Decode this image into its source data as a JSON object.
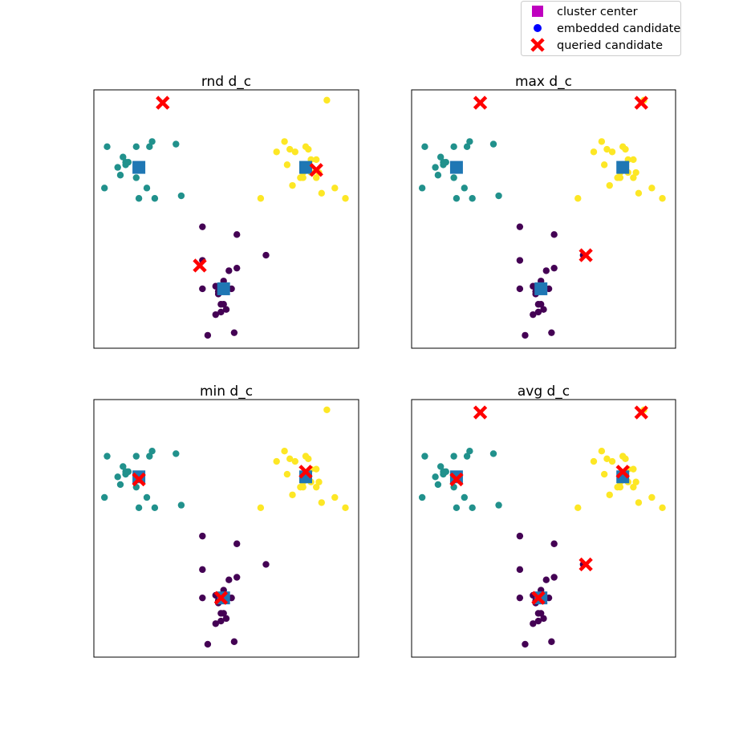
{
  "colors": {
    "cluster_center": "#1f77b4",
    "legend_center": "#bf00bf",
    "embedded": "#0000ff",
    "queried": "#ff0000",
    "class_a": "#440154",
    "class_b": "#21918c",
    "class_c": "#fde725"
  },
  "legend": {
    "placement": "top-right",
    "entries": [
      {
        "label": "cluster center",
        "marker": "square",
        "color": "#bf00bf"
      },
      {
        "label": "embedded candidate",
        "marker": "circle",
        "color": "#0000ff"
      },
      {
        "label": "queried candidate",
        "marker": "x",
        "color": "#ff0000"
      }
    ]
  },
  "chart_data": [
    {
      "type": "scatter",
      "title": "rnd d_c",
      "xlim": [
        0,
        10
      ],
      "ylim": [
        0,
        10
      ],
      "grid": false,
      "centers": [
        [
          1.7,
          7.0
        ],
        [
          8.0,
          7.0
        ],
        [
          4.9,
          2.3
        ]
      ],
      "queried": [
        [
          2.6,
          9.5
        ],
        [
          8.4,
          6.9
        ],
        [
          4.0,
          3.2
        ]
      ]
    },
    {
      "type": "scatter",
      "title": "max d_c",
      "xlim": [
        0,
        10
      ],
      "ylim": [
        0,
        10
      ],
      "grid": false,
      "centers": [
        [
          1.7,
          7.0
        ],
        [
          8.0,
          7.0
        ],
        [
          4.9,
          2.3
        ]
      ],
      "queried": [
        [
          2.6,
          9.5
        ],
        [
          8.7,
          9.5
        ],
        [
          6.6,
          3.6
        ]
      ]
    },
    {
      "type": "scatter",
      "title": "min d_c",
      "xlim": [
        0,
        10
      ],
      "ylim": [
        0,
        10
      ],
      "grid": false,
      "centers": [
        [
          1.7,
          7.0
        ],
        [
          8.0,
          7.0
        ],
        [
          4.9,
          2.3
        ]
      ],
      "queried": [
        [
          1.7,
          6.9
        ],
        [
          8.0,
          7.2
        ],
        [
          4.8,
          2.3
        ]
      ]
    },
    {
      "type": "scatter",
      "title": "avg d_c",
      "xlim": [
        0,
        10
      ],
      "ylim": [
        0,
        10
      ],
      "grid": false,
      "centers": [
        [
          1.7,
          7.0
        ],
        [
          8.0,
          7.0
        ],
        [
          4.9,
          2.3
        ]
      ],
      "queried": [
        [
          2.6,
          9.5
        ],
        [
          8.7,
          9.5
        ],
        [
          1.7,
          6.9
        ],
        [
          8.0,
          7.2
        ],
        [
          6.6,
          3.6
        ],
        [
          4.8,
          2.3
        ]
      ]
    }
  ],
  "points": {
    "class_b": [
      [
        0.5,
        7.8
      ],
      [
        1.1,
        7.4
      ],
      [
        1.6,
        7.8
      ],
      [
        2.1,
        7.8
      ],
      [
        2.2,
        8.0
      ],
      [
        3.1,
        7.9
      ],
      [
        1.2,
        7.2
      ],
      [
        1.3,
        7.2
      ],
      [
        1.2,
        7.1
      ],
      [
        1.7,
        7.1
      ],
      [
        1.0,
        6.7
      ],
      [
        1.6,
        6.6
      ],
      [
        1.8,
        6.9
      ],
      [
        0.9,
        7.0
      ],
      [
        2.0,
        6.2
      ],
      [
        0.4,
        6.2
      ],
      [
        1.7,
        5.8
      ],
      [
        2.3,
        5.8
      ],
      [
        3.3,
        5.9
      ]
    ],
    "class_c": [
      [
        8.8,
        9.6
      ],
      [
        6.9,
        7.6
      ],
      [
        7.2,
        8.0
      ],
      [
        7.4,
        7.7
      ],
      [
        8.0,
        7.8
      ],
      [
        8.1,
        7.7
      ],
      [
        8.2,
        7.3
      ],
      [
        8.4,
        7.3
      ],
      [
        7.6,
        7.6
      ],
      [
        7.3,
        7.1
      ],
      [
        8.1,
        7.1
      ],
      [
        7.9,
        6.8
      ],
      [
        8.2,
        6.8
      ],
      [
        8.5,
        6.8
      ],
      [
        8.4,
        6.6
      ],
      [
        7.8,
        6.6
      ],
      [
        7.9,
        6.6
      ],
      [
        7.5,
        6.3
      ],
      [
        8.6,
        6.0
      ],
      [
        9.1,
        6.2
      ],
      [
        9.5,
        5.8
      ],
      [
        6.3,
        5.8
      ]
    ],
    "class_a": [
      [
        4.1,
        4.7
      ],
      [
        5.4,
        4.4
      ],
      [
        6.5,
        3.6
      ],
      [
        5.4,
        3.1
      ],
      [
        4.1,
        3.4
      ],
      [
        5.1,
        3.0
      ],
      [
        4.1,
        2.3
      ],
      [
        4.6,
        2.4
      ],
      [
        5.2,
        2.3
      ],
      [
        4.9,
        2.6
      ],
      [
        4.7,
        2.2
      ],
      [
        4.7,
        2.1
      ],
      [
        4.8,
        1.7
      ],
      [
        4.9,
        1.7
      ],
      [
        5.0,
        1.5
      ],
      [
        4.6,
        1.3
      ],
      [
        4.8,
        1.4
      ],
      [
        4.3,
        0.5
      ],
      [
        5.3,
        0.6
      ]
    ]
  }
}
